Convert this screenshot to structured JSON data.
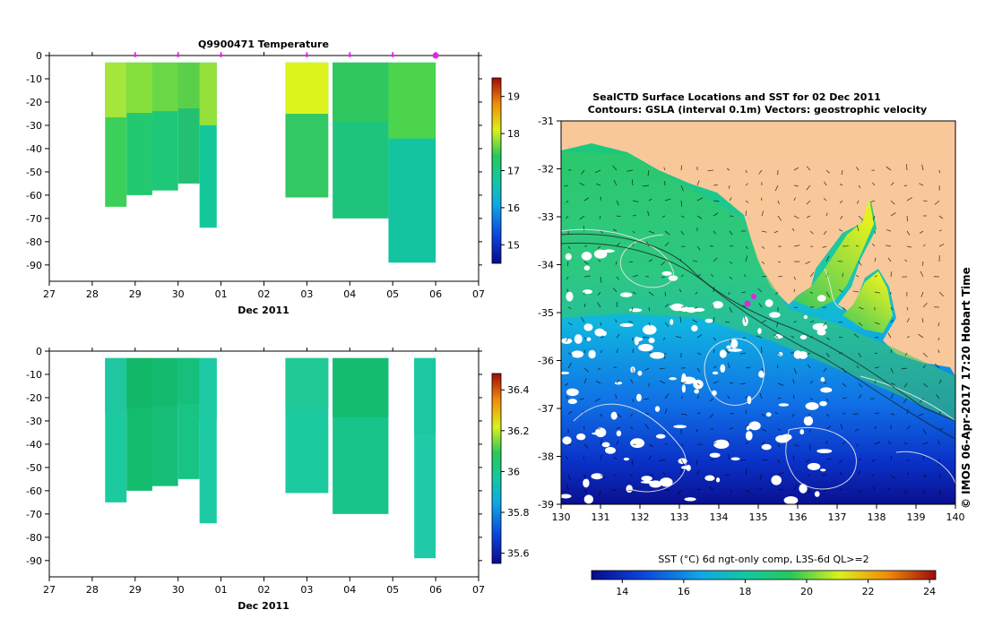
{
  "chart_data": [
    {
      "type": "heatmap",
      "title": "Q9900471  Temperature",
      "xlabel": "Dec 2011",
      "x_ticks": [
        "27",
        "28",
        "29",
        "30",
        "01",
        "02",
        "03",
        "04",
        "05",
        "06",
        "07"
      ],
      "y_ticks": [
        0,
        -10,
        -20,
        -30,
        -40,
        -50,
        -60,
        -70,
        -80,
        -90
      ],
      "ylim": [
        -97,
        0
      ],
      "colorbar": {
        "ticks": [
          15,
          16,
          17,
          18,
          19
        ],
        "range": [
          14.5,
          19.5
        ]
      },
      "profile_markers_day": [
        29,
        30,
        31,
        33,
        34,
        35,
        36
      ],
      "profiles": [
        {
          "start": 28.3,
          "end": 28.8,
          "depth": 65,
          "color": "#3cd05a",
          "top_color": "#a4e63c"
        },
        {
          "start": 28.8,
          "end": 29.4,
          "depth": 60,
          "color": "#24c86e",
          "top_color": "#86de3c"
        },
        {
          "start": 29.4,
          "end": 30.0,
          "depth": 58,
          "color": "#1ec878",
          "top_color": "#6ad846"
        },
        {
          "start": 30.0,
          "end": 30.5,
          "depth": 55,
          "color": "#22c070",
          "top_color": "#5ad04a"
        },
        {
          "start": 30.5,
          "end": 30.9,
          "depth": 74,
          "color": "#14c89c",
          "top_color": "#96e03c"
        },
        {
          "start": 32.5,
          "end": 33.5,
          "depth": 61,
          "color": "#32c864",
          "top_color": "#dcf41a"
        },
        {
          "start": 33.6,
          "end": 34.9,
          "depth": 70,
          "color": "#1ec47c",
          "top_color": "#2ec85e"
        },
        {
          "start": 34.9,
          "end": 36.0,
          "depth": 89,
          "color": "#14c4a0",
          "top_color": "#4cd44c"
        }
      ]
    },
    {
      "type": "heatmap",
      "title": "",
      "xlabel": "Dec 2011",
      "x_ticks": [
        "27",
        "28",
        "29",
        "30",
        "01",
        "02",
        "03",
        "04",
        "05",
        "06",
        "07"
      ],
      "y_ticks": [
        0,
        -10,
        -20,
        -30,
        -40,
        -50,
        -60,
        -70,
        -80,
        -90
      ],
      "ylim": [
        -97,
        0
      ],
      "colorbar": {
        "ticks": [
          35.6,
          35.8,
          36,
          36.2,
          36.4
        ],
        "range": [
          35.55,
          36.48
        ]
      },
      "profiles": [
        {
          "start": 28.3,
          "end": 28.8,
          "depth": 65,
          "color": "#1ccaa0",
          "top_color": "#20c6a0"
        },
        {
          "start": 28.8,
          "end": 29.4,
          "depth": 60,
          "color": "#14bc6e",
          "top_color": "#12b868"
        },
        {
          "start": 29.4,
          "end": 30.0,
          "depth": 58,
          "color": "#16be78",
          "top_color": "#14ba70"
        },
        {
          "start": 30.0,
          "end": 30.5,
          "depth": 55,
          "color": "#18c484",
          "top_color": "#16c07c"
        },
        {
          "start": 30.5,
          "end": 30.9,
          "depth": 74,
          "color": "#1ecaa4",
          "top_color": "#1ecaa4"
        },
        {
          "start": 32.5,
          "end": 33.5,
          "depth": 61,
          "color": "#1ccaa0",
          "top_color": "#20c896"
        },
        {
          "start": 33.6,
          "end": 34.9,
          "depth": 70,
          "color": "#18c48a",
          "top_color": "#14bc72"
        },
        {
          "start": 35.5,
          "end": 36.0,
          "depth": 89,
          "color": "#20caa8",
          "top_color": "#1cc8a0"
        }
      ]
    },
    {
      "type": "heatmap",
      "title": "SealCTD Surface Locations and SST for 02 Dec 2011",
      "subtitle": "Contours: GSLA (interval 0.1m) Vectors: geostrophic velocity",
      "x_ticks": [
        "130",
        "131",
        "132",
        "133",
        "134",
        "135",
        "136",
        "137",
        "138",
        "139",
        "140"
      ],
      "y_ticks": [
        "-31",
        "-32",
        "-33",
        "-34",
        "-35",
        "-36",
        "-37",
        "-38",
        "-39"
      ],
      "xlim": [
        130,
        140
      ],
      "ylim": [
        -39,
        -31
      ],
      "colorbar_label": "SST (°C) 6d ngt-only comp, L3S-6d QL>=2",
      "colorbar_ticks": [
        "14",
        "16",
        "18",
        "20",
        "22",
        "24"
      ],
      "colorbar_range": [
        13,
        24.2
      ],
      "surface_locations": [
        [
          134.65,
          -34.8
        ],
        [
          134.85,
          -34.65
        ]
      ],
      "watermark": "© IMOS 06-Apr-2017 17:20 Hobart Time"
    }
  ],
  "colors": {
    "land": "#f8c89a",
    "marker": "#e026e0"
  }
}
